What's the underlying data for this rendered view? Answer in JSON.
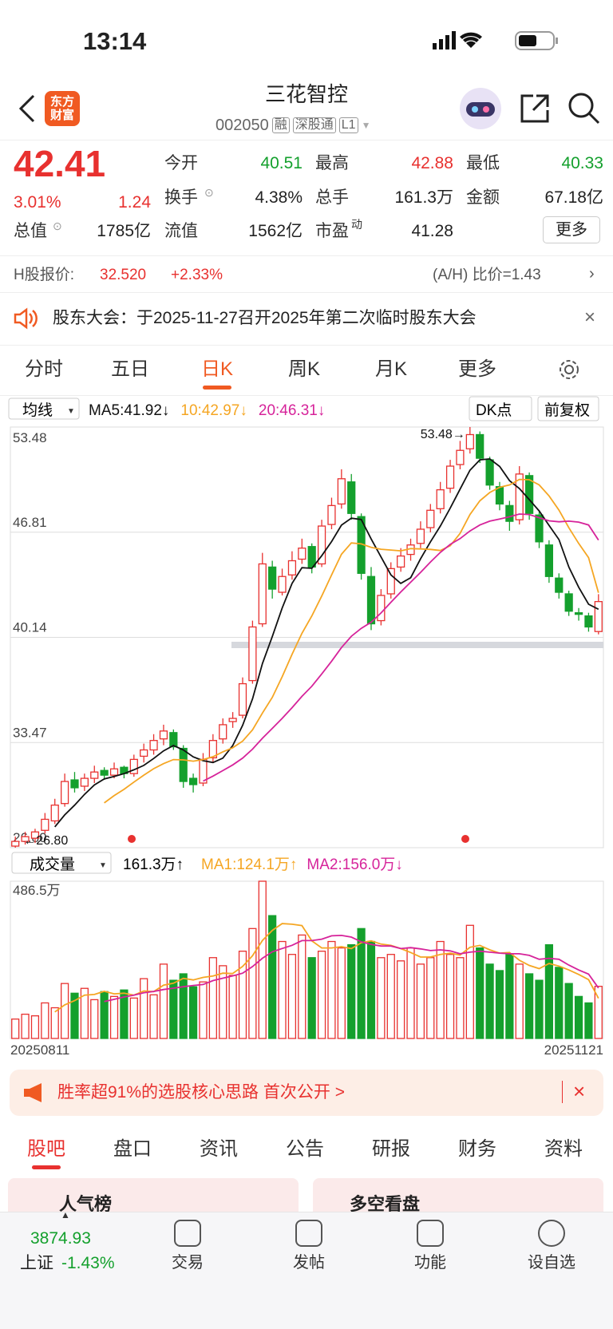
{
  "status": {
    "time": "13:14"
  },
  "header": {
    "logo": [
      "东方",
      "财富"
    ],
    "name": "三花智控",
    "code": "002050",
    "tags": [
      "融",
      "深股通",
      "L1"
    ]
  },
  "quote": {
    "price": "42.41",
    "change_pct": "3.01%",
    "change": "1.24",
    "fields": [
      {
        "label": "今开",
        "value": "40.51"
      },
      {
        "label": "最高",
        "value": "42.88"
      },
      {
        "label": "最低",
        "value": "40.33"
      },
      {
        "label": "换手",
        "value": "4.38%"
      },
      {
        "label": "总手",
        "value": "161.3万"
      },
      {
        "label": "金额",
        "value": "67.18亿"
      },
      {
        "label": "总值",
        "value": "1785亿"
      },
      {
        "label": "流值",
        "value": "1562亿"
      },
      {
        "label": "市盈",
        "sup": "动",
        "value": "41.28"
      }
    ],
    "more": "更多"
  },
  "hshare": {
    "label": "H股报价:",
    "price": "32.520",
    "change": "+2.33%",
    "ratio": "(A/H) 比价=1.43"
  },
  "notice": {
    "text": "股东大会：于2025-11-27召开2025年第二次临时股东大会"
  },
  "tabs": {
    "items": [
      "分时",
      "五日",
      "日K",
      "周K",
      "月K",
      "更多"
    ],
    "active": 2
  },
  "chart_data": [
    {
      "type": "candlestick",
      "selector": "均线",
      "buttons": [
        "DK点",
        "前复权"
      ],
      "up_color": "#e8312f",
      "down_color": "#14a02d",
      "ohlc": [
        [
          26.9,
          27.5,
          26.8,
          27.2
        ],
        [
          27.2,
          27.8,
          27.0,
          27.5
        ],
        [
          27.4,
          28.0,
          27.1,
          27.8
        ],
        [
          27.9,
          29.0,
          27.7,
          28.6
        ],
        [
          28.5,
          29.9,
          28.3,
          29.5
        ],
        [
          29.6,
          31.5,
          29.4,
          31.0
        ],
        [
          31.1,
          31.6,
          30.3,
          30.6
        ],
        [
          30.7,
          31.5,
          30.4,
          31.2
        ],
        [
          31.2,
          32.0,
          30.9,
          31.6
        ],
        [
          31.7,
          31.9,
          31.1,
          31.4
        ],
        [
          31.4,
          32.2,
          31.2,
          31.8
        ],
        [
          31.9,
          32.0,
          31.2,
          31.5
        ],
        [
          31.5,
          32.7,
          31.3,
          32.4
        ],
        [
          32.6,
          33.4,
          32.2,
          33.0
        ],
        [
          33.0,
          34.0,
          32.7,
          33.6
        ],
        [
          33.7,
          34.6,
          33.3,
          34.2
        ],
        [
          34.1,
          34.3,
          33.0,
          33.2
        ],
        [
          33.1,
          33.3,
          30.6,
          31.0
        ],
        [
          31.2,
          31.5,
          30.3,
          30.8
        ],
        [
          30.9,
          32.8,
          30.7,
          32.4
        ],
        [
          32.5,
          34.0,
          32.2,
          33.6
        ],
        [
          33.7,
          35.0,
          33.4,
          34.6
        ],
        [
          34.8,
          35.4,
          34.4,
          35.0
        ],
        [
          35.2,
          37.6,
          35.0,
          37.2
        ],
        [
          37.4,
          41.2,
          37.2,
          40.8
        ],
        [
          41.0,
          45.5,
          40.8,
          44.8
        ],
        [
          44.6,
          45.0,
          42.6,
          43.2
        ],
        [
          43.0,
          44.5,
          42.8,
          44.0
        ],
        [
          44.1,
          45.6,
          43.8,
          45.0
        ],
        [
          45.1,
          46.4,
          44.8,
          45.8
        ],
        [
          45.9,
          46.1,
          44.2,
          44.6
        ],
        [
          44.8,
          47.6,
          44.6,
          47.2
        ],
        [
          47.3,
          49.0,
          47.0,
          48.5
        ],
        [
          48.6,
          50.8,
          48.3,
          50.2
        ],
        [
          50.0,
          50.5,
          47.6,
          48.0
        ],
        [
          47.8,
          48.0,
          43.8,
          44.2
        ],
        [
          44.0,
          44.6,
          40.6,
          41.0
        ],
        [
          41.2,
          43.2,
          40.9,
          42.8
        ],
        [
          42.9,
          44.9,
          42.6,
          44.5
        ],
        [
          44.6,
          45.8,
          44.3,
          45.3
        ],
        [
          45.4,
          46.4,
          45.0,
          46.0
        ],
        [
          46.1,
          47.5,
          45.8,
          47.0
        ],
        [
          47.1,
          48.6,
          46.8,
          48.2
        ],
        [
          48.3,
          50.0,
          48.0,
          49.5
        ],
        [
          49.6,
          51.4,
          49.3,
          51.0
        ],
        [
          51.1,
          52.6,
          50.8,
          52.0
        ],
        [
          52.1,
          53.48,
          51.8,
          53.0
        ],
        [
          53.0,
          53.2,
          51.2,
          51.5
        ],
        [
          51.4,
          51.6,
          49.5,
          49.8
        ],
        [
          49.7,
          50.0,
          48.2,
          48.6
        ],
        [
          48.5,
          48.8,
          46.9,
          47.5
        ],
        [
          47.6,
          51.0,
          47.3,
          50.5
        ],
        [
          50.4,
          50.6,
          47.6,
          48.0
        ],
        [
          47.9,
          48.2,
          45.8,
          46.2
        ],
        [
          46.0,
          46.3,
          43.6,
          44.0
        ],
        [
          43.9,
          44.2,
          42.6,
          43.0
        ],
        [
          42.9,
          43.1,
          41.5,
          41.8
        ],
        [
          41.7,
          42.0,
          41.2,
          41.6
        ],
        [
          41.5,
          41.7,
          40.5,
          40.8
        ],
        [
          40.51,
          42.88,
          40.33,
          42.41
        ]
      ],
      "series": [
        {
          "name": "MA5:41.92↓",
          "color": "#111111",
          "values": [
            null,
            null,
            null,
            null,
            28.12,
            28.88,
            29.5,
            30.18,
            30.78,
            31.16,
            31.32,
            31.5,
            31.74,
            32.02,
            32.46,
            32.94,
            33.28,
            33.0,
            32.56,
            32.32,
            32.2,
            32.48,
            33.28,
            34.56,
            36.24,
            38.48,
            40.2,
            42.0,
            43.56,
            44.56,
            44.52,
            45.32,
            46.22,
            47.26,
            47.7,
            47.62,
            46.38,
            45.24,
            44.1,
            43.56,
            43.92,
            45.12,
            46.2,
            47.2,
            48.34,
            49.54,
            50.74,
            51.4,
            51.46,
            50.98,
            50.08,
            49.58,
            48.88,
            48.16,
            47.24,
            46.34,
            44.6,
            43.32,
            42.24,
            41.92
          ]
        },
        {
          "name": "10:42.97↓",
          "color": "#f5a623",
          "values": [
            null,
            null,
            null,
            null,
            null,
            null,
            null,
            null,
            null,
            29.64,
            30.1,
            30.5,
            30.96,
            31.4,
            31.81,
            32.13,
            32.39,
            32.37,
            32.29,
            32.39,
            32.57,
            32.88,
            33.14,
            33.56,
            34.28,
            35.34,
            36.34,
            37.64,
            39.06,
            40.4,
            41.5,
            42.76,
            44.11,
            45.41,
            46.13,
            46.07,
            45.85,
            45.73,
            45.68,
            45.63,
            45.77,
            45.75,
            45.72,
            45.65,
            45.95,
            46.73,
            47.93,
            48.8,
            49.33,
            49.66,
            49.81,
            50.16,
            50.14,
            49.81,
            49.11,
            48.21,
            47.09,
            46.1,
            45.2,
            42.97
          ]
        },
        {
          "name": "20:46.31↓",
          "color": "#d6239a",
          "values": [
            null,
            null,
            null,
            null,
            null,
            null,
            null,
            null,
            null,
            null,
            null,
            null,
            null,
            null,
            null,
            null,
            null,
            null,
            null,
            31.02,
            31.34,
            31.69,
            32.05,
            32.48,
            33.05,
            33.74,
            34.37,
            35.0,
            35.68,
            36.4,
            37.04,
            37.82,
            38.63,
            39.49,
            40.21,
            40.71,
            41.1,
            41.69,
            42.37,
            43.02,
            43.64,
            44.26,
            44.92,
            45.53,
            46.04,
            46.4,
            46.89,
            47.27,
            47.51,
            47.65,
            47.79,
            47.96,
            47.93,
            47.73,
            47.53,
            47.47,
            47.51,
            47.45,
            47.27,
            46.31
          ]
        }
      ],
      "ylim": [
        26.8,
        53.48
      ],
      "yticks": [
        53.48,
        46.81,
        40.14,
        33.47,
        {
          "value": 26.8,
          "label": "26.80"
        }
      ],
      "grid": true,
      "annotations": {
        "high": "53.48→",
        "low": "←26.80"
      }
    },
    {
      "type": "bar",
      "selector": "成交量",
      "current": "161.3万↑",
      "values": [
        60,
        75,
        70,
        110,
        95,
        170,
        140,
        155,
        120,
        145,
        130,
        150,
        125,
        185,
        135,
        230,
        180,
        200,
        160,
        175,
        250,
        225,
        195,
        270,
        340,
        486.5,
        380,
        300,
        260,
        320,
        250,
        270,
        300,
        280,
        290,
        340,
        300,
        250,
        260,
        240,
        280,
        230,
        250,
        300,
        260,
        250,
        350,
        280,
        230,
        210,
        260,
        230,
        200,
        180,
        290,
        220,
        170,
        130,
        110,
        161.3
      ],
      "series": [
        {
          "name": "MA1:124.1万↑",
          "color": "#f5a623",
          "values": [
            null,
            null,
            null,
            null,
            82,
            104,
            117,
            134,
            136,
            146,
            138,
            140,
            134,
            147,
            145,
            165,
            171,
            186,
            181,
            189,
            193,
            202,
            201,
            223,
            256,
            303.3,
            334.3,
            355.3,
            353.3,
            349.3,
            302,
            280,
            280,
            284,
            278,
            296,
            302,
            292,
            288,
            278,
            266,
            252,
            252,
            260,
            264,
            258,
            282,
            288,
            274,
            264,
            266,
            242,
            226,
            216,
            232,
            224,
            212,
            198,
            182,
            124.1
          ]
        },
        {
          "name": "MA2:156.0万↓",
          "color": "#d6239a",
          "values": [
            null,
            null,
            null,
            null,
            null,
            null,
            null,
            null,
            null,
            114,
            121,
            128.5,
            134,
            141.5,
            145.5,
            151.5,
            155.5,
            160,
            164,
            167,
            179,
            186.5,
            193.5,
            202,
            222.5,
            248.2,
            268.2,
            278.2,
            288.2,
            302.7,
            302.7,
            307.2,
            317.7,
            318.7,
            313.7,
            299,
            291,
            286,
            286,
            278,
            281,
            277,
            272,
            274,
            271,
            262,
            267,
            270,
            267,
            264,
            262,
            262,
            257,
            245,
            248,
            245,
            227,
            212,
            199,
            156.0
          ]
        }
      ],
      "ylim": [
        0,
        486.5
      ],
      "yticks": [
        {
          "value": 486.5,
          "label": "486.5万"
        }
      ],
      "x_labels": [
        "20250811",
        "20251121"
      ]
    }
  ],
  "banner": {
    "text": "胜率超91%的选股核心思路 首次公开 >"
  },
  "section_tabs": {
    "items": [
      "股吧",
      "盘口",
      "资讯",
      "公告",
      "研报",
      "财务",
      "资料"
    ],
    "active": 0
  },
  "cards": [
    "人气榜",
    "多空看盘"
  ],
  "bottom": {
    "index_value": "3874.93",
    "index_name": "上证",
    "index_change": "-1.43%",
    "buttons": [
      "交易",
      "发帖",
      "功能",
      "设自选"
    ]
  }
}
